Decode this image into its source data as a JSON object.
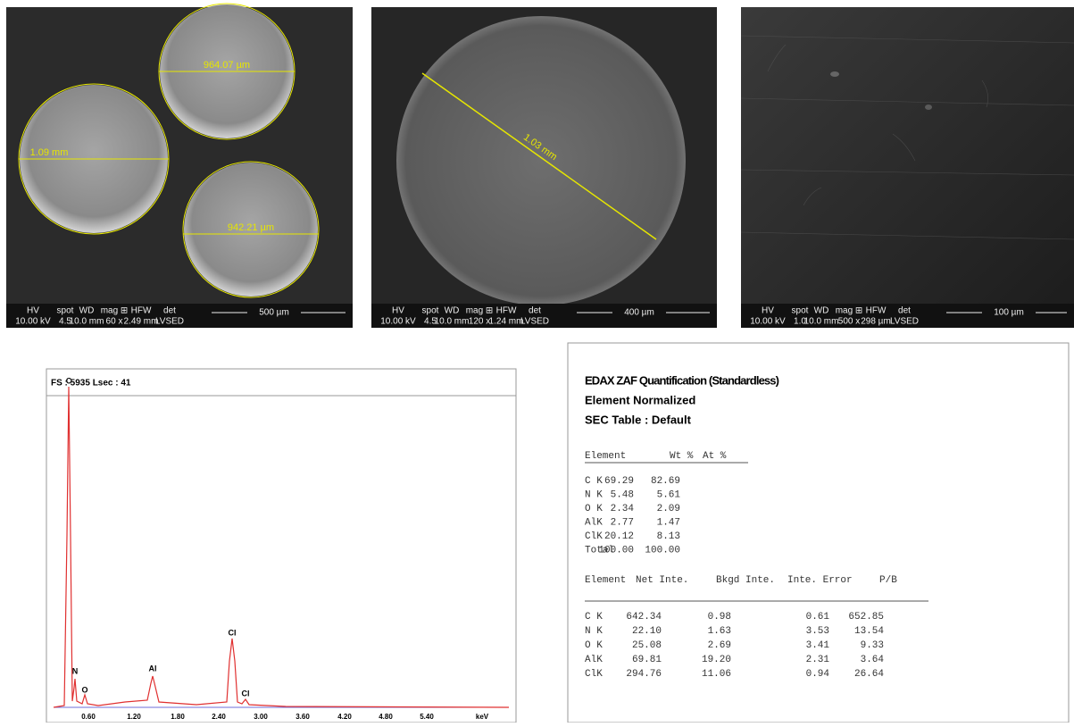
{
  "sem_images": [
    {
      "measurements": [
        "964.07 µm",
        "1.09 mm",
        "942.21 µm"
      ],
      "info_values": [
        "10.00 kV",
        "4.5",
        "10.0 mm",
        "60 x",
        "2.49 mm",
        "LVSED"
      ],
      "scale_bar": "500 µm"
    },
    {
      "measurements": [
        "1.03 mm"
      ],
      "info_values": [
        "10.00 kV",
        "4.5",
        "10.0 mm",
        "120 x",
        "1.24 mm",
        "LVSED"
      ],
      "scale_bar": "400 µm"
    },
    {
      "measurements": [],
      "info_values": [
        "10.00 kV",
        "1.0",
        "10.0 mm",
        "500 x",
        "298 µm",
        "LVSED"
      ],
      "scale_bar": "100 µm"
    }
  ],
  "info_labels": [
    "HV",
    "spot",
    "WD",
    "mag ⊞",
    "HFW",
    "det"
  ],
  "spectrum": {
    "header": "FS : 5935  Lsec : 41",
    "peak_labels": [
      "C",
      "N",
      "O",
      "Al",
      "Cl",
      "Cl"
    ],
    "x_tick_labels": [
      "0.60",
      "1.20",
      "1.80",
      "2.40",
      "3.00",
      "3.60",
      "4.20",
      "4.80",
      "5.40"
    ],
    "x_unit": "keV"
  },
  "quantification": {
    "title_lines": [
      "EDAX ZAF Quantification (Standardless)",
      "Element Normalized",
      "SEC Table : Default"
    ],
    "table1": {
      "header": [
        "Element",
        "Wt %",
        "At %"
      ],
      "rows": [
        [
          "C K",
          "69.29",
          "82.69"
        ],
        [
          "N K",
          "5.48",
          "5.61"
        ],
        [
          "O K",
          "2.34",
          "2.09"
        ],
        [
          "AlK",
          "2.77",
          "1.47"
        ],
        [
          "ClK",
          "20.12",
          "8.13"
        ],
        [
          "Total",
          "100.00",
          "100.00"
        ]
      ]
    },
    "table2": {
      "header": [
        "Element",
        "Net Inte.",
        "Bkgd Inte.",
        "Inte. Error",
        "P/B"
      ],
      "rows": [
        [
          "C K",
          "642.34",
          "0.98",
          "0.61",
          "652.85"
        ],
        [
          "N K",
          "22.10",
          "1.63",
          "3.53",
          "13.54"
        ],
        [
          "O K",
          "25.08",
          "2.69",
          "3.41",
          "9.33"
        ],
        [
          "AlK",
          "69.81",
          "19.20",
          "2.31",
          "3.64"
        ],
        [
          "ClK",
          "294.76",
          "11.06",
          "0.94",
          "26.64"
        ]
      ]
    }
  }
}
